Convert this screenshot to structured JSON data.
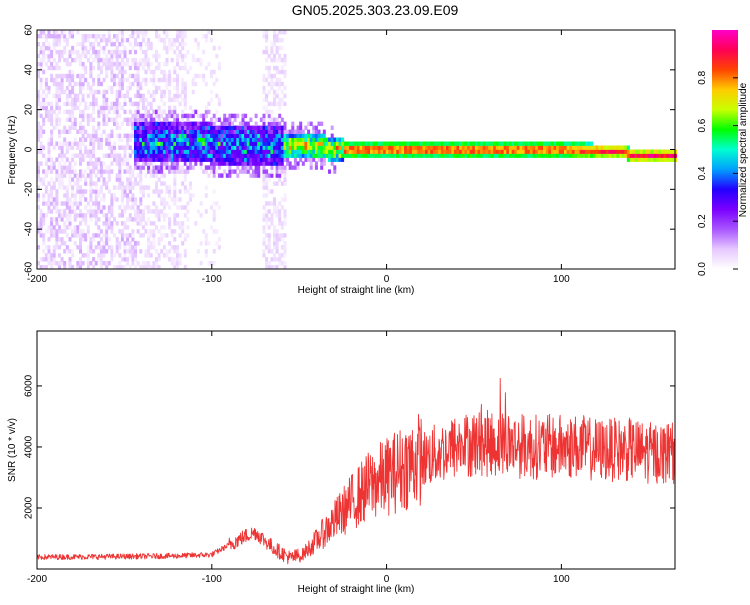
{
  "title": "GN05.2025.303.23.09.E09",
  "chart_data": [
    {
      "type": "heatmap",
      "xlabel": "Height of straight line (km)",
      "ylabel": "Frequency (Hz)",
      "xlim": [
        -200,
        165
      ],
      "ylim": [
        -60,
        60
      ],
      "x_ticks": [
        -200,
        -100,
        0,
        100
      ],
      "y_ticks": [
        -60,
        -40,
        -20,
        0,
        20,
        40,
        60
      ],
      "colorbar": {
        "label": "Normalized spectral amplitude",
        "range": [
          0,
          1
        ],
        "ticks": [
          0.0,
          0.2,
          0.4,
          0.6,
          0.8
        ],
        "colors": [
          "#ffffff",
          "#e6c8ff",
          "#a855ff",
          "#7a00ff",
          "#2200ff",
          "#00a0ff",
          "#00ffd0",
          "#00ff00",
          "#c8ff00",
          "#ffcc00",
          "#ff4400",
          "#ff0055",
          "#ff00c8"
        ]
      },
      "ridge": {
        "x": [
          -145,
          -100,
          -60,
          -45,
          -25,
          0,
          50,
          100,
          135,
          140,
          165
        ],
        "frequency": [
          4,
          3,
          2,
          2,
          0,
          0,
          0,
          0,
          -1,
          -3,
          -3
        ]
      }
    },
    {
      "type": "line",
      "xlabel": "Height of straight line (km)",
      "ylabel": "SNR (10 * v/v)",
      "xlim": [
        -200,
        165
      ],
      "ylim": [
        0,
        7800
      ],
      "x_ticks": [
        -200,
        -100,
        0,
        100
      ],
      "y_ticks": [
        2000,
        4000,
        6000
      ],
      "color": "#ee3333",
      "series_envelope": {
        "x": [
          -200,
          -150,
          -120,
          -100,
          -90,
          -80,
          -75,
          -65,
          -55,
          -50,
          -40,
          -30,
          -20,
          -10,
          0,
          10,
          20,
          30,
          40,
          50,
          60,
          70,
          80,
          90,
          100,
          110,
          120,
          130,
          140,
          150,
          160,
          165
        ],
        "y": [
          300,
          320,
          340,
          380,
          700,
          1000,
          1100,
          600,
          250,
          350,
          900,
          1500,
          2100,
          2600,
          2900,
          3200,
          3500,
          3700,
          3900,
          4000,
          4000,
          4000,
          3900,
          3900,
          3900,
          3900,
          3800,
          3800,
          3800,
          3700,
          3700,
          3700
        ]
      }
    }
  ]
}
